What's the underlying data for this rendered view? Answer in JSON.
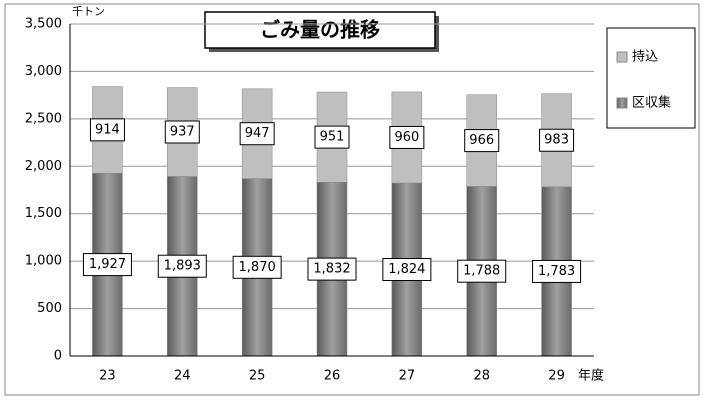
{
  "chart_data": {
    "type": "bar",
    "stacked": true,
    "title": "ごみ量の推移",
    "y_unit": "千トン",
    "x_label": "年度",
    "categories": [
      "23",
      "24",
      "25",
      "26",
      "27",
      "28",
      "29"
    ],
    "series": [
      {
        "name": "区収集",
        "color": "#7f7f7f",
        "values": [
          1927,
          1893,
          1870,
          1832,
          1824,
          1788,
          1783
        ],
        "value_labels": [
          "1,927",
          "1,893",
          "1,870",
          "1,832",
          "1,824",
          "1,788",
          "1,783"
        ]
      },
      {
        "name": "持込",
        "color": "#bfbfbf",
        "values": [
          914,
          937,
          947,
          951,
          960,
          966,
          983
        ]
      }
    ],
    "ylim": [
      0,
      3500
    ],
    "yticks": [
      0,
      500,
      {
        "value": 1000,
        "label": "1,000"
      },
      {
        "value": 1500,
        "label": "1,500"
      },
      {
        "value": 2000,
        "label": "2,000"
      },
      {
        "value": 2500,
        "label": "2,500"
      },
      {
        "value": 3000,
        "label": "3,000"
      },
      {
        "value": 3500,
        "label": "3,500"
      }
    ],
    "grid": true
  }
}
